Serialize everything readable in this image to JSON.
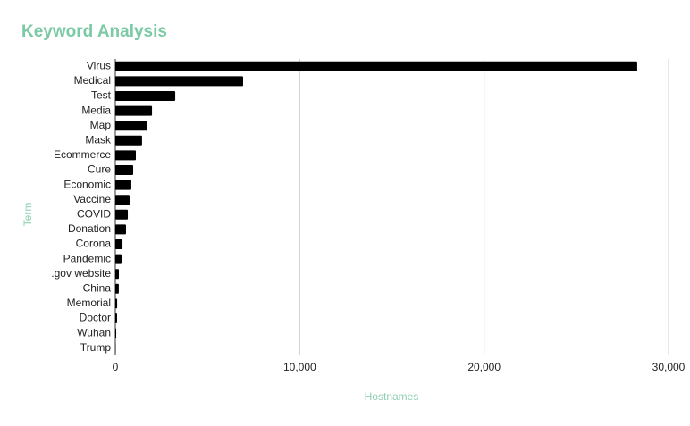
{
  "chart_data": {
    "type": "bar",
    "orientation": "horizontal",
    "title": "Keyword Analysis",
    "x_label": "Hostnames",
    "y_label": "Term",
    "categories": [
      "Virus",
      "Medical",
      "Test",
      "Media",
      "Map",
      "Mask",
      "Ecommerce",
      "Cure",
      "Economic",
      "Vaccine",
      "COVID",
      "Donation",
      "Corona",
      "Pandemic",
      ".gov website",
      "China",
      "Memorial",
      "Doctor",
      "Wuhan",
      "Trump"
    ],
    "values": [
      28300,
      6930,
      3250,
      1990,
      1745,
      1450,
      1115,
      970,
      870,
      775,
      680,
      580,
      390,
      340,
      195,
      190,
      100,
      95,
      50,
      20
    ],
    "color": "#000000",
    "xlim": [
      0,
      30000
    ],
    "xticks": [
      0,
      {
        "value": 10000,
        "label": "10,000"
      },
      {
        "value": 20000,
        "label": "20,000"
      },
      {
        "value": 30000,
        "label": "30,000"
      }
    ],
    "grid": true
  }
}
